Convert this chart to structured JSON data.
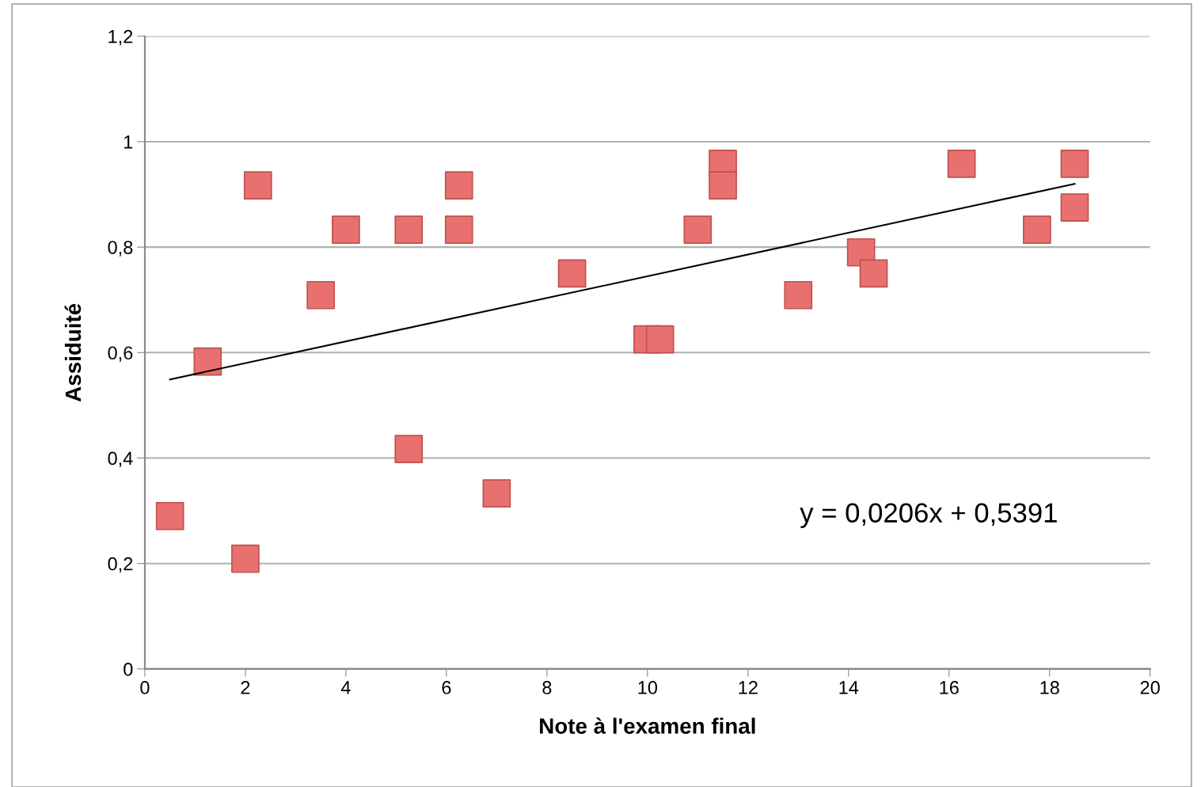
{
  "chart_data": {
    "type": "scatter",
    "xlabel": "Note à l'examen final",
    "ylabel": "Assiduité",
    "series": [
      {
        "color": "#e8716f",
        "marker": "square",
        "x": [
          0.5,
          1.25,
          2.0,
          2.25,
          3.5,
          4.0,
          5.25,
          5.25,
          6.25,
          6.25,
          7.0,
          8.5,
          10.0,
          10.25,
          11.0,
          11.5,
          11.5,
          13.0,
          14.25,
          14.5,
          16.25,
          17.75,
          18.5,
          18.5
        ],
        "values": [
          0.29,
          0.583,
          0.209,
          0.917,
          0.709,
          0.833,
          0.833,
          0.417,
          0.917,
          0.833,
          0.333,
          0.75,
          0.625,
          0.625,
          0.833,
          0.958,
          0.917,
          0.709,
          0.79,
          0.75,
          0.958,
          0.833,
          0.958,
          0.875
        ]
      },
      {
        "type": "line",
        "color": "#000000",
        "line_style": "solid",
        "x": [
          0.5,
          18.5
        ],
        "values": [
          0.549,
          0.92
        ]
      }
    ],
    "annotations": [
      "y = 0,0206x + 0,5391"
    ],
    "xlim": [
      0,
      20
    ],
    "ylim": [
      0,
      1.2
    ],
    "xticks": [
      0,
      2,
      4,
      6,
      8,
      10,
      12,
      14,
      16,
      18,
      20
    ],
    "yticks": [
      0,
      {
        "value": 0.2,
        "label": "0,2"
      },
      {
        "value": 0.4,
        "label": "0,4"
      },
      {
        "value": 0.6,
        "label": "0,6"
      },
      {
        "value": 0.8,
        "label": "0,8"
      },
      1,
      {
        "value": 1.2,
        "label": "1,2"
      }
    ],
    "grid": "y"
  }
}
